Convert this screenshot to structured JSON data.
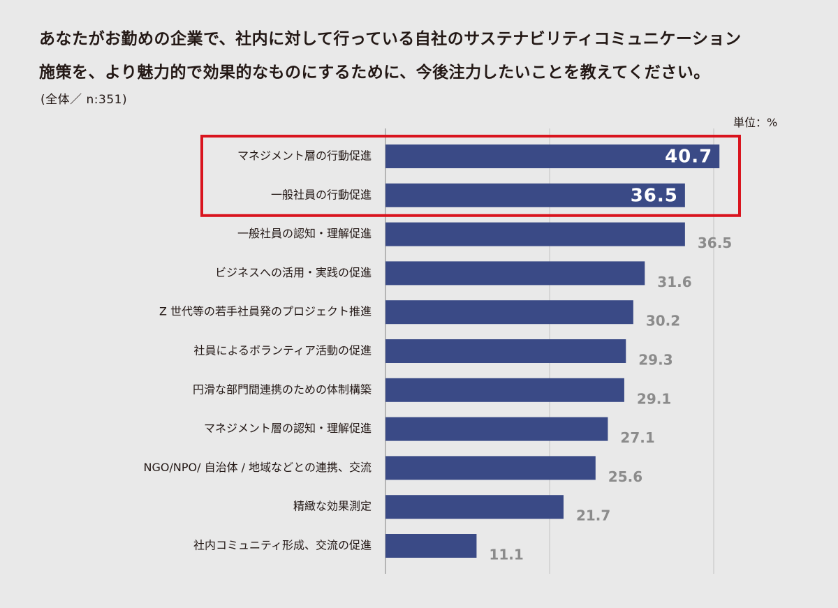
{
  "header": {
    "title_line1": "あなたがお勤めの企業で、社内に対して行っている自社のサステナビリティコミュニケーション",
    "title_line2": "施策を、より魅力的で効果的なものにするために、今後注力したいことを教えてください。",
    "sample": "(全体／ n:351)",
    "unit": "単位：%"
  },
  "colors": {
    "bar": "#3a4a86",
    "highlight_border": "#d9141e",
    "grid": "#c9c9c9",
    "axis": "#b5b5b5",
    "value_label": "#8b8b8b"
  },
  "chart_data": {
    "type": "bar",
    "orientation": "horizontal",
    "title": "あなたがお勤めの企業で、社内に対して行っている自社のサステナビリティコミュニケーション施策を、より魅力的で効果的なものにするために、今後注力したいことを教えてください。",
    "subtitle": "(全体／ n:351)",
    "unit": "単位：%",
    "xlim": [
      0,
      50
    ],
    "grid": true,
    "categories": [
      "マネジメント層の行動促進",
      "一般社員の行動促進",
      "一般社員の認知・理解促進",
      "ビジネスへの活用・実践の促進",
      "Z 世代等の若手社員発のプロジェクト推進",
      "社員によるボランティア活動の促進",
      "円滑な部門間連携のための体制構築",
      "マネジメント層の認知・理解促進",
      "NGO/NPO/ 自治体 / 地域などとの連携、交流",
      "精緻な効果測定",
      "社内コミュニティ形成、交流の促進"
    ],
    "value_labels": [
      "40.7",
      "36.5",
      "36.5",
      "31.6",
      "30.2",
      "29.3",
      "29.1",
      "27.1",
      "25.6",
      "21.7",
      "11.1"
    ],
    "values": [
      40.7,
      36.5,
      36.5,
      31.6,
      30.2,
      29.3,
      29.1,
      27.1,
      25.6,
      21.7,
      11.1
    ],
    "highlighted_categories": [
      "マネジメント層の行動促進",
      "一般社員の行動促進"
    ]
  }
}
